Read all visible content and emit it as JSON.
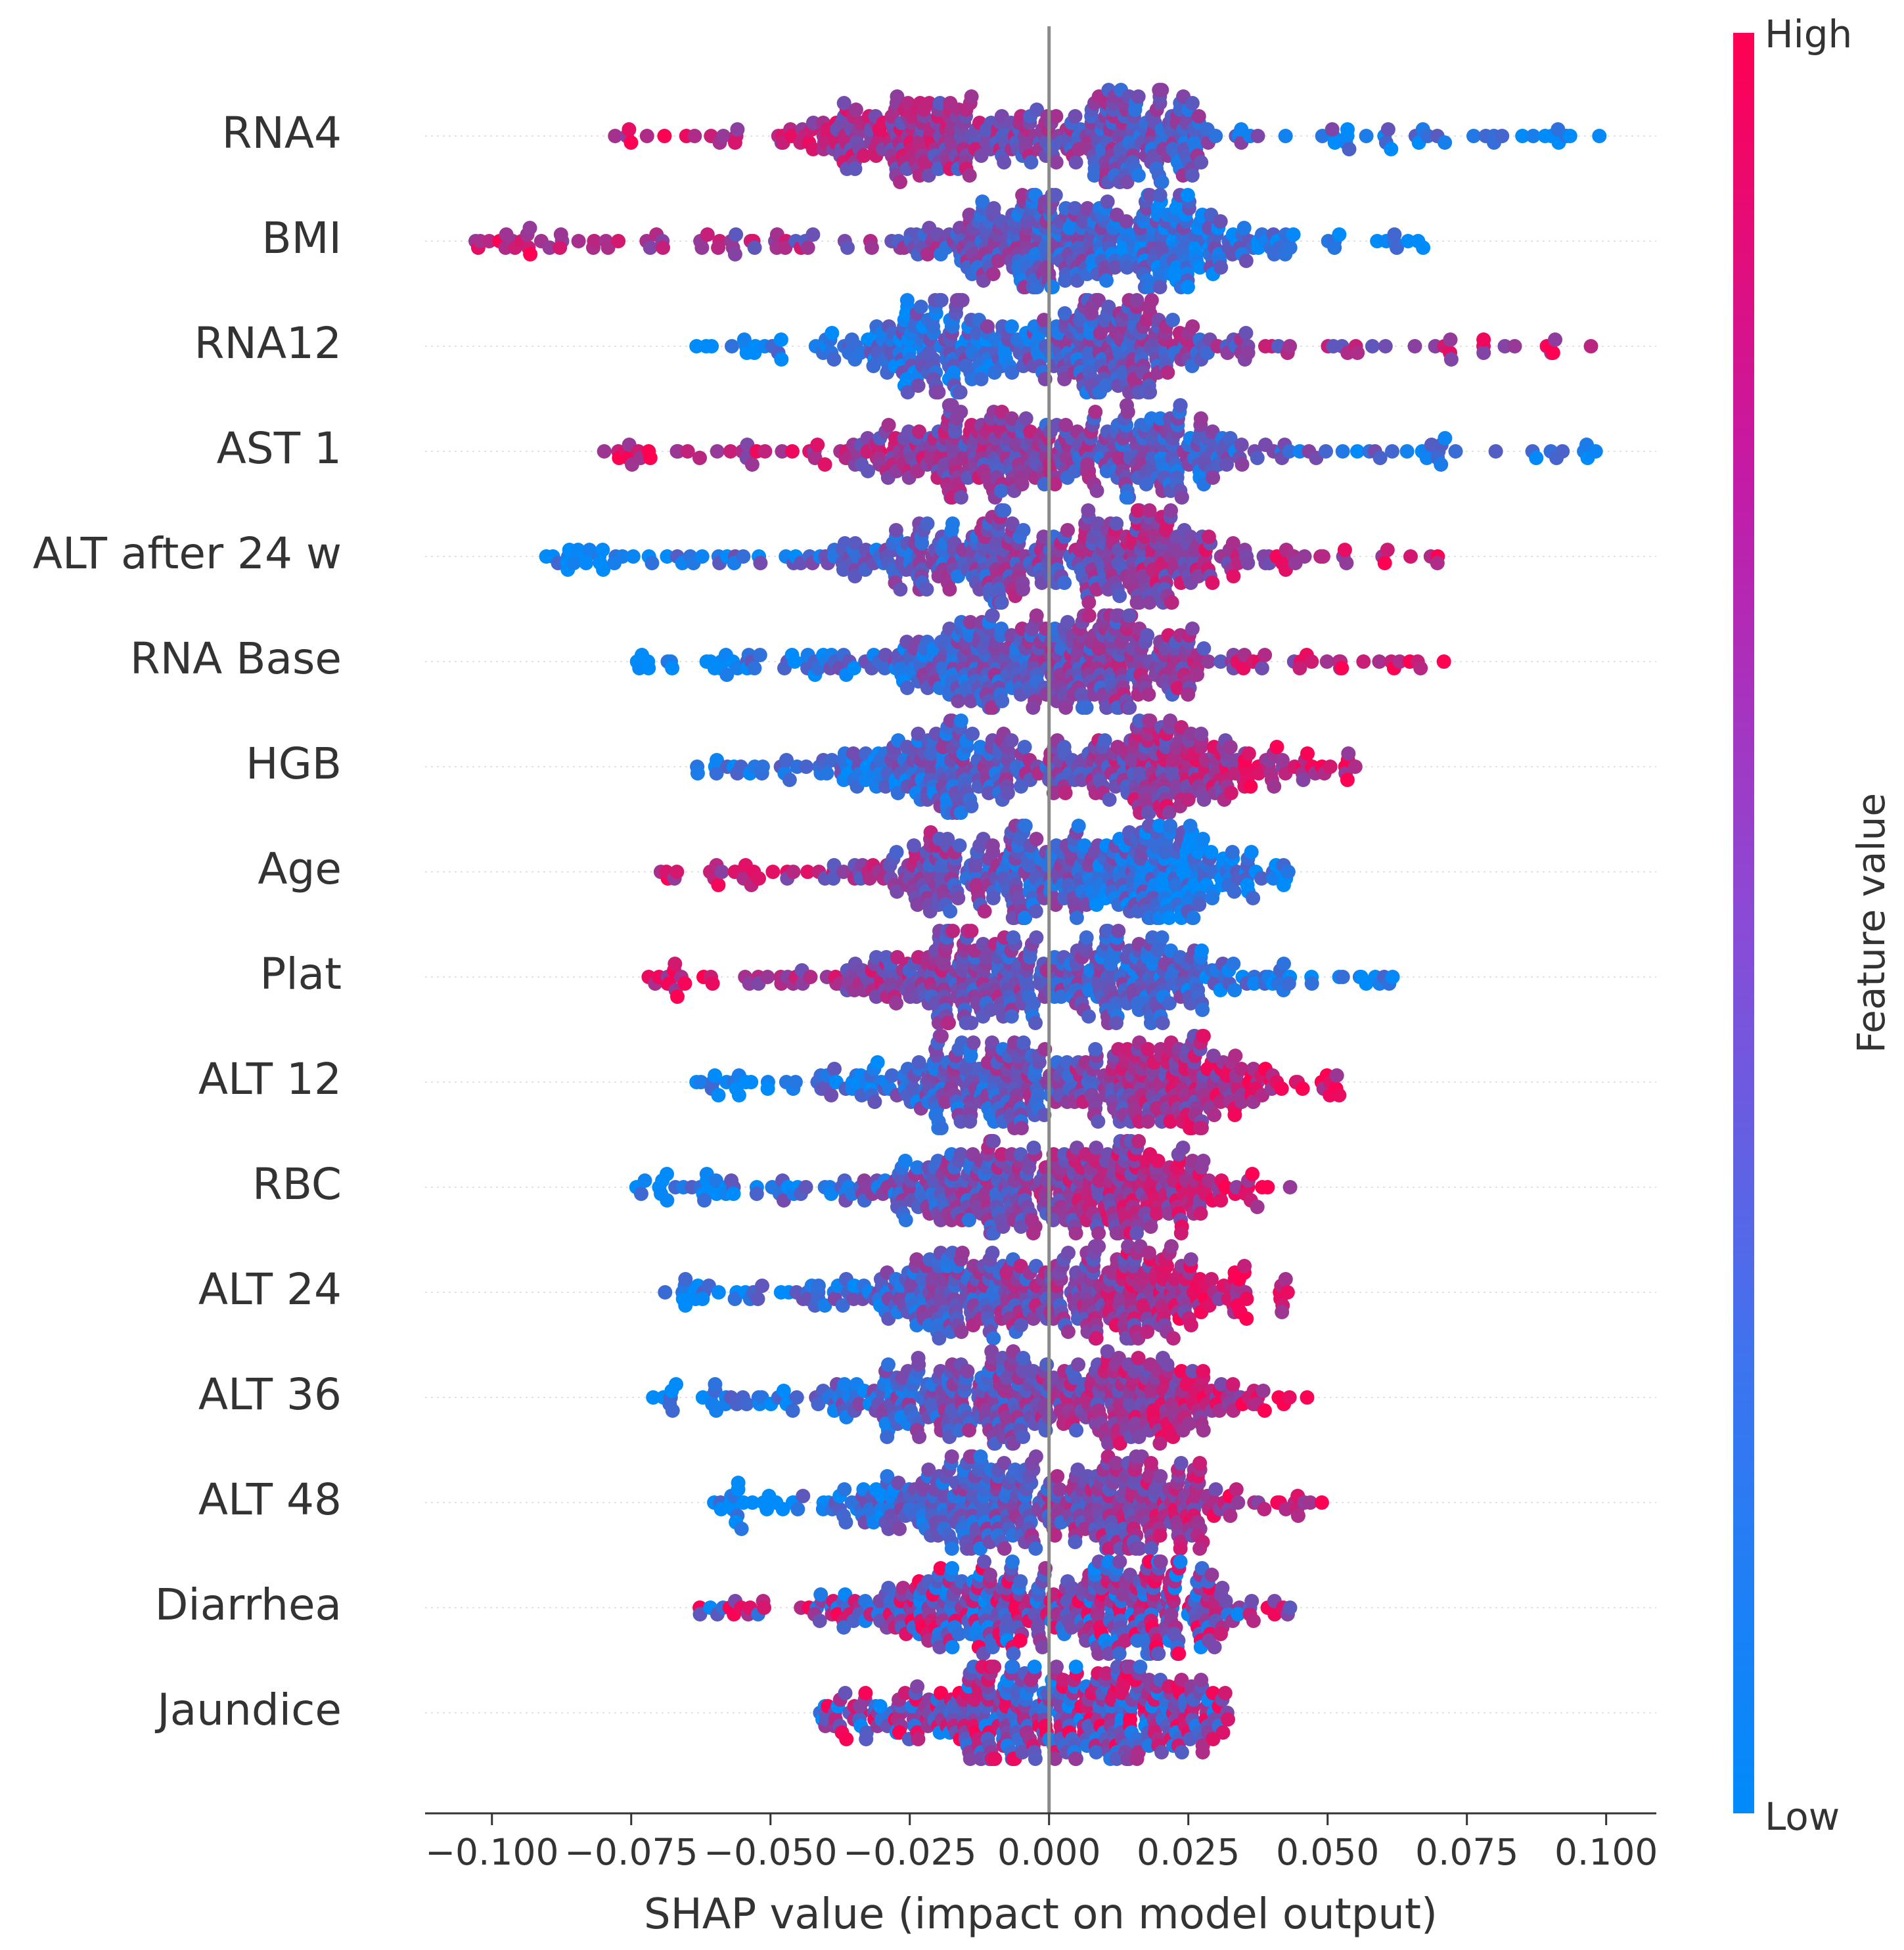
{
  "chart_data": {
    "type": "scatter",
    "subtype": "shap-beeswarm",
    "title": "",
    "xlabel": "SHAP value (impact on model output)",
    "ylabel": "",
    "xlim": [
      -0.112,
      0.109
    ],
    "xticks": [
      -0.1,
      -0.075,
      -0.05,
      -0.025,
      0.0,
      0.025,
      0.05,
      0.075,
      0.1
    ],
    "xtick_labels": [
      "−0.100",
      "−0.075",
      "−0.050",
      "−0.025",
      "0.000",
      "0.025",
      "0.050",
      "0.075",
      "0.100"
    ],
    "reference_line_x": 0.0,
    "colorbar": {
      "title": "Feature value",
      "high_label": "High",
      "low_label": "Low",
      "high_color": "#ff0052",
      "low_color": "#008bfb"
    },
    "features": [
      {
        "name": "RNA4",
        "min": -0.078,
        "max": 0.099,
        "low_side": "right",
        "modes": [
          -0.025,
          0.015
        ]
      },
      {
        "name": "BMI",
        "min": -0.103,
        "max": 0.067,
        "low_side": "right",
        "modes": [
          -0.005,
          0.02
        ]
      },
      {
        "name": "RNA12",
        "min": -0.063,
        "max": 0.097,
        "low_side": "left",
        "modes": [
          -0.02,
          0.01
        ]
      },
      {
        "name": "AST 1",
        "min": -0.08,
        "max": 0.098,
        "low_side": "right",
        "modes": [
          -0.013,
          0.017
        ]
      },
      {
        "name": "ALT after 24 w",
        "min": -0.09,
        "max": 0.07,
        "low_side": "left",
        "modes": [
          -0.015,
          0.017
        ]
      },
      {
        "name": "RNA Base",
        "min": -0.074,
        "max": 0.071,
        "low_side": "left",
        "modes": [
          -0.012,
          0.012
        ]
      },
      {
        "name": "HGB",
        "min": -0.063,
        "max": 0.055,
        "low_side": "left",
        "modes": [
          -0.02,
          0.022
        ]
      },
      {
        "name": "Age",
        "min": -0.07,
        "max": 0.043,
        "low_side": "right",
        "modes": [
          -0.01,
          0.02
        ]
      },
      {
        "name": "Plat",
        "min": -0.072,
        "max": 0.062,
        "low_side": "right",
        "modes": [
          -0.015,
          0.015
        ]
      },
      {
        "name": "ALT 12",
        "min": -0.063,
        "max": 0.052,
        "low_side": "left",
        "modes": [
          -0.012,
          0.022
        ]
      },
      {
        "name": "RBC",
        "min": -0.074,
        "max": 0.043,
        "low_side": "left",
        "modes": [
          -0.012,
          0.015
        ]
      },
      {
        "name": "ALT 24",
        "min": -0.069,
        "max": 0.043,
        "low_side": "left",
        "modes": [
          -0.015,
          0.015
        ]
      },
      {
        "name": "ALT 36",
        "min": -0.071,
        "max": 0.046,
        "low_side": "left",
        "modes": [
          -0.015,
          0.015
        ]
      },
      {
        "name": "ALT 48",
        "min": -0.06,
        "max": 0.049,
        "low_side": "left",
        "modes": [
          -0.015,
          0.015
        ]
      },
      {
        "name": "Diarrhea",
        "min": -0.063,
        "max": 0.043,
        "low_side": "mixed",
        "modes": [
          -0.015,
          0.017
        ]
      },
      {
        "name": "Jaundice",
        "min": -0.041,
        "max": 0.032,
        "low_side": "mixed",
        "modes": [
          -0.012,
          0.015
        ]
      }
    ]
  }
}
